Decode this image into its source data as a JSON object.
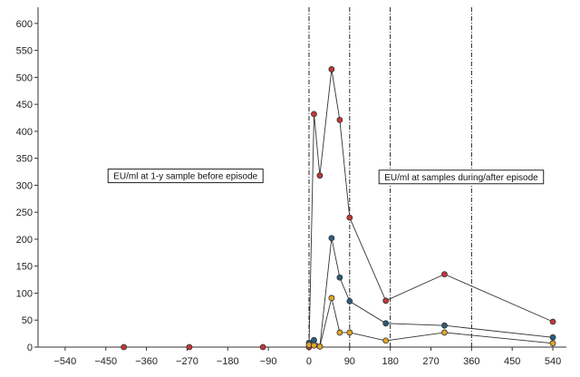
{
  "chart_data": {
    "type": "line",
    "xlim": [
      -600,
      570
    ],
    "ylim": [
      0,
      630
    ],
    "x_ticks": [
      -540,
      -450,
      -360,
      -270,
      -180,
      -90,
      0,
      90,
      180,
      270,
      360,
      450,
      540
    ],
    "y_ticks": [
      0,
      50,
      100,
      150,
      200,
      250,
      300,
      350,
      400,
      450,
      500,
      550,
      600
    ],
    "vertical_lines": [
      0,
      90,
      180,
      360
    ],
    "grid": false,
    "series": [
      {
        "color": "#c0383a",
        "points": [
          [
            -410,
            0
          ],
          [
            -265,
            0
          ],
          [
            -102,
            0
          ],
          [
            0,
            0
          ],
          [
            11,
            432
          ],
          [
            24,
            318
          ],
          [
            50,
            515
          ],
          [
            68,
            421
          ],
          [
            90,
            240
          ],
          [
            170,
            86
          ],
          [
            300,
            135
          ],
          [
            540,
            47
          ]
        ]
      },
      {
        "color": "#2a5d7f",
        "points": [
          [
            0,
            8
          ],
          [
            11,
            13
          ],
          [
            24,
            1
          ],
          [
            50,
            202
          ],
          [
            68,
            129
          ],
          [
            90,
            85
          ],
          [
            170,
            44
          ],
          [
            300,
            40
          ],
          [
            540,
            18
          ]
        ]
      },
      {
        "color": "#e2a62a",
        "points": [
          [
            0,
            4
          ],
          [
            11,
            3
          ],
          [
            24,
            1
          ],
          [
            50,
            91
          ],
          [
            68,
            27
          ],
          [
            90,
            27
          ],
          [
            170,
            12
          ],
          [
            300,
            27
          ],
          [
            540,
            7
          ]
        ]
      }
    ],
    "annotations": [
      {
        "text": "EU/ml at 1-y sample before episode",
        "x": -445,
        "y": 330
      },
      {
        "text": "EU/ml at samples during/after episode",
        "x": 155,
        "y": 328
      }
    ]
  }
}
